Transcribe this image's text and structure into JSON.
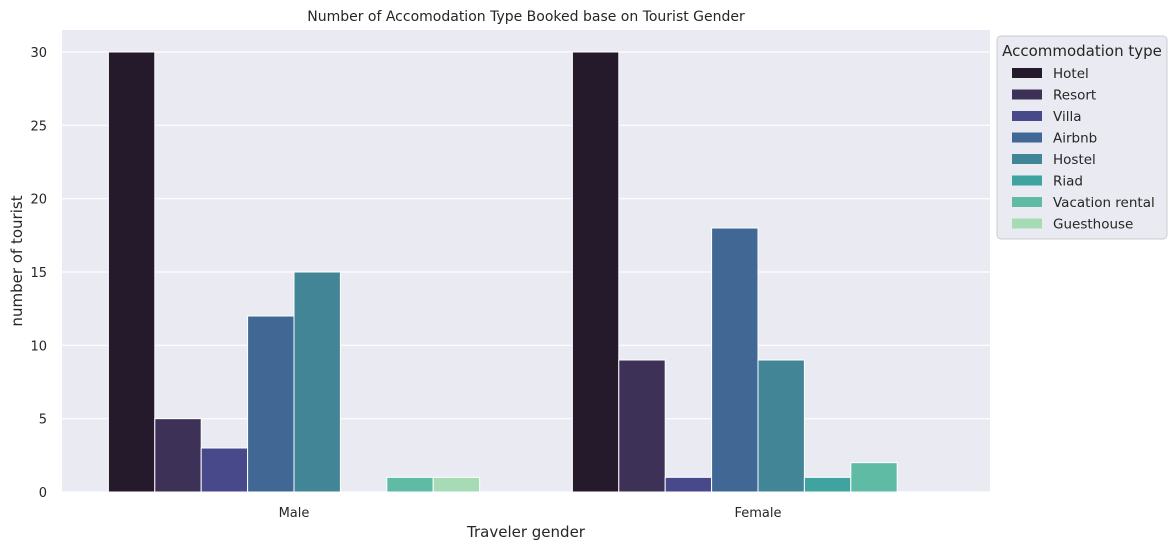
{
  "chart_data": {
    "type": "bar",
    "title": "Number of Accomodation Type Booked base on Tourist Gender",
    "xlabel": "Traveler gender",
    "ylabel": "number of tourist",
    "categories": [
      "Male",
      "Female"
    ],
    "ylim": [
      0,
      31.5
    ],
    "yticks": [
      0,
      5,
      10,
      15,
      20,
      25,
      30
    ],
    "grid": true,
    "legend": {
      "title": "Accommodation type",
      "placement": "outside top-right"
    },
    "series": [
      {
        "name": "Hotel",
        "color": "#251a2b",
        "values": [
          30,
          30
        ]
      },
      {
        "name": "Resort",
        "color": "#3e3158",
        "values": [
          5,
          9
        ]
      },
      {
        "name": "Villa",
        "color": "#47498a",
        "values": [
          3,
          1
        ]
      },
      {
        "name": "Airbnb",
        "color": "#416894",
        "values": [
          12,
          18
        ]
      },
      {
        "name": "Hostel",
        "color": "#418597",
        "values": [
          15,
          9
        ]
      },
      {
        "name": "Riad",
        "color": "#3fa39f",
        "values": [
          0,
          1
        ]
      },
      {
        "name": "Vacation rental",
        "color": "#5fbba4",
        "values": [
          1,
          2
        ]
      },
      {
        "name": "Guesthouse",
        "color": "#a7dbb5",
        "values": [
          1,
          0
        ]
      }
    ]
  }
}
